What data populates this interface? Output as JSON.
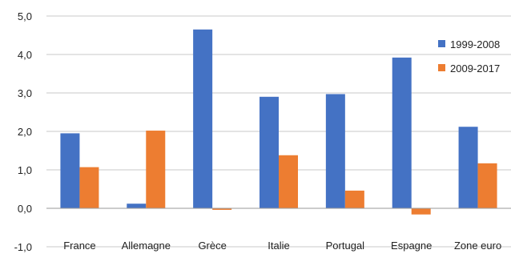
{
  "chart_data": {
    "type": "bar",
    "title": "",
    "xlabel": "",
    "ylabel": "",
    "ylim": [
      -1.0,
      5.0
    ],
    "yticks": [
      "-1,0",
      "0,0",
      "1,0",
      "2,0",
      "3,0",
      "4,0",
      "5,0"
    ],
    "grid": true,
    "legend_position": "top-right",
    "categories": [
      "France",
      "Allemagne",
      "Grèce",
      "Italie",
      "Portugal",
      "Espagne",
      "Zone euro"
    ],
    "series": [
      {
        "name": "1999-2008",
        "color": "#4472C4",
        "values": [
          1.95,
          0.12,
          4.65,
          2.9,
          2.97,
          3.92,
          2.12
        ]
      },
      {
        "name": "2009-2017",
        "color": "#ED7D31",
        "values": [
          1.07,
          2.02,
          -0.04,
          1.38,
          0.46,
          -0.16,
          1.17
        ]
      }
    ]
  }
}
